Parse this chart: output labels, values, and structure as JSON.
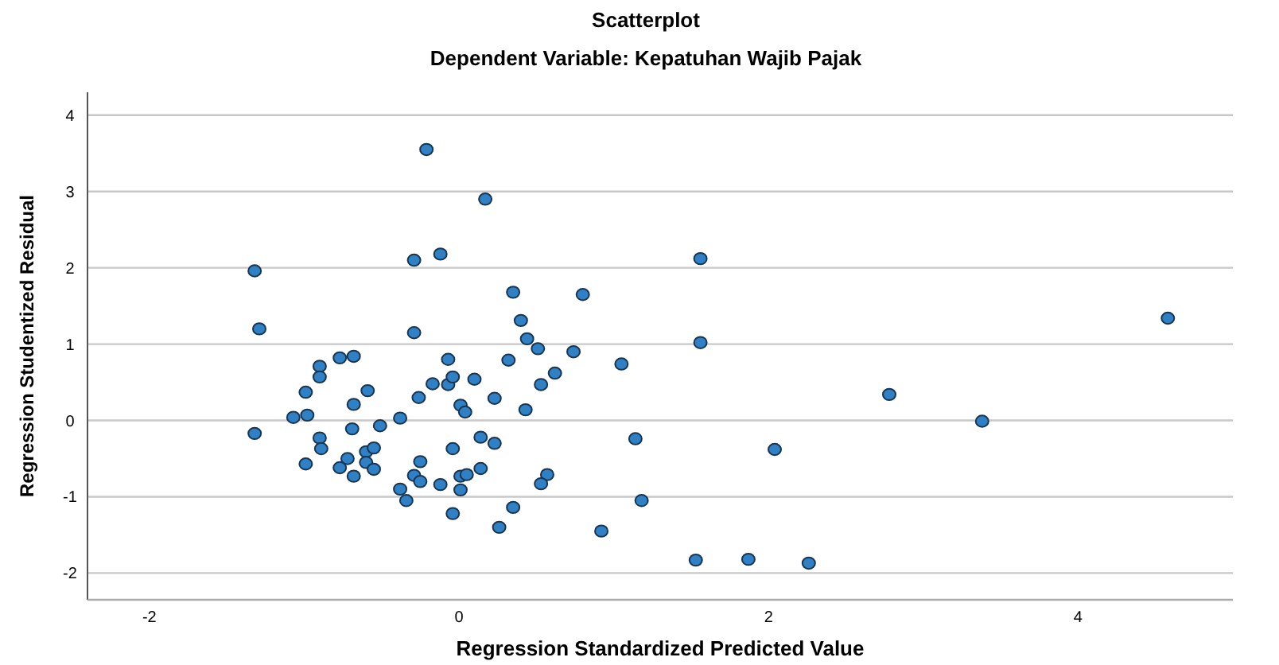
{
  "chart_data": {
    "type": "scatter",
    "title": "Scatterplot",
    "subtitle": "Dependent Variable: Kepatuhan Wajib Pajak",
    "xlabel": "Regression Standardized Predicted Value",
    "ylabel": "Regression Studentized Residual",
    "xlim": [
      -2.4,
      5.0
    ],
    "ylim": [
      -2.35,
      4.3
    ],
    "xticks": [
      -2,
      0,
      2,
      4
    ],
    "yticks": [
      -2,
      -1,
      0,
      1,
      2,
      3,
      4
    ],
    "grid": "y",
    "marker": "circle",
    "series": [
      {
        "color": "#2f80c4",
        "x": [
          -1.32,
          -1.29,
          -1.32,
          -0.21,
          0.17,
          -0.29,
          -0.12,
          1.56,
          -0.29,
          0.35,
          0.8,
          1.56,
          0.4,
          0.44,
          0.51,
          0.74,
          -0.77,
          -0.68,
          -0.9,
          -0.9,
          -0.99,
          -0.59,
          -0.68,
          -1.07,
          -0.98,
          -0.69,
          -0.51,
          -0.38,
          -0.07,
          0.32,
          -0.17,
          -0.07,
          -0.04,
          0.1,
          -0.26,
          0.23,
          0.01,
          0.04,
          0.43,
          -0.9,
          -0.89,
          -0.99,
          -0.72,
          -0.77,
          -0.68,
          -0.6,
          -0.55,
          -0.6,
          -0.55,
          -0.25,
          -0.29,
          -0.25,
          -0.38,
          -0.34,
          -0.12,
          -0.04,
          0.14,
          0.23,
          0.14,
          0.01,
          0.05,
          0.01,
          -0.04,
          0.26,
          0.35,
          1.05,
          0.62,
          0.53,
          1.14,
          0.57,
          0.53,
          1.18,
          0.92,
          1.53,
          1.87,
          2.26,
          4.58,
          2.78,
          3.38,
          2.04
        ],
        "values": [
          1.96,
          1.2,
          -0.17,
          3.55,
          2.9,
          2.1,
          2.18,
          2.12,
          1.15,
          1.68,
          1.65,
          1.02,
          1.31,
          1.07,
          0.94,
          0.9,
          0.82,
          0.84,
          0.71,
          0.57,
          0.37,
          0.39,
          0.21,
          0.04,
          0.07,
          -0.11,
          -0.07,
          0.03,
          0.8,
          0.79,
          0.48,
          0.47,
          0.57,
          0.54,
          0.3,
          0.29,
          0.2,
          0.11,
          0.14,
          -0.23,
          -0.37,
          -0.57,
          -0.5,
          -0.62,
          -0.73,
          -0.41,
          -0.36,
          -0.55,
          -0.64,
          -0.54,
          -0.72,
          -0.8,
          -0.9,
          -1.05,
          -0.84,
          -0.37,
          -0.22,
          -0.3,
          -0.63,
          -0.73,
          -0.71,
          -0.91,
          -1.22,
          -1.4,
          -1.14,
          0.74,
          0.62,
          0.47,
          -0.24,
          -0.71,
          -0.83,
          -1.05,
          -1.45,
          -1.83,
          -1.82,
          -1.87,
          1.34,
          0.34,
          -0.01,
          -0.38
        ]
      }
    ]
  }
}
